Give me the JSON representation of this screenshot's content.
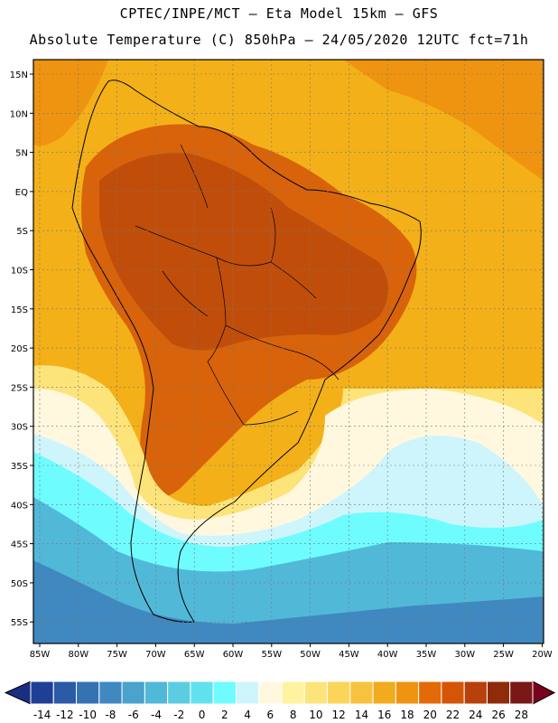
{
  "header": {
    "line1": "CPTEC/INPE/MCT –  Eta Model 15km – GFS",
    "line2": "Absolute Temperature (C) 850hPa – 24/05/2020 12UTC fct=71h"
  },
  "axes": {
    "lat_labels": [
      "15N",
      "10N",
      "5N",
      "EQ",
      "5S",
      "10S",
      "15S",
      "20S",
      "25S",
      "30S",
      "35S",
      "40S",
      "45S",
      "50S",
      "55S"
    ],
    "lon_labels": [
      "85W",
      "80W",
      "75W",
      "70W",
      "65W",
      "60W",
      "55W",
      "50W",
      "45W",
      "40W",
      "35W",
      "30W",
      "25W",
      "20W"
    ]
  },
  "colorbar": {
    "labels": [
      "-14",
      "-12",
      "-10",
      "-8",
      "-6",
      "-4",
      "-2",
      "0",
      "2",
      "4",
      "6",
      "8",
      "10",
      "12",
      "14",
      "16",
      "18",
      "20",
      "22",
      "24",
      "26",
      "28"
    ],
    "colors": [
      "#1f3e96",
      "#2b5aa6",
      "#3572b3",
      "#3f89c0",
      "#4aa2cd",
      "#52b8d8",
      "#5ccde1",
      "#5fe2ee",
      "#6ffcff",
      "#cdf5fb",
      "#fff8df",
      "#fff3a0",
      "#fde47a",
      "#fbd45a",
      "#f7c33e",
      "#f2ab1c",
      "#ee9410",
      "#e46a08",
      "#d45506",
      "#b8400a",
      "#8f2a0a",
      "#7a1818"
    ],
    "left_end_color": "#1a2f80",
    "right_end_color": "#7a0020"
  },
  "map_palette": {
    "ocean_warm": "#f3b018",
    "ocean_hot": "#ee9410",
    "land_hot": "#d8630a",
    "land_very_hot": "#c04e0a",
    "land_warm": "#e98a14",
    "south_cool_1": "#fde47a",
    "south_cool_2": "#fff8df",
    "south_cold_1": "#cdf5fb",
    "south_cold_2": "#6ffcff",
    "south_cold_3": "#52b8d8",
    "south_cold_4": "#3f89c0",
    "south_cold_5": "#2b5aa6"
  }
}
